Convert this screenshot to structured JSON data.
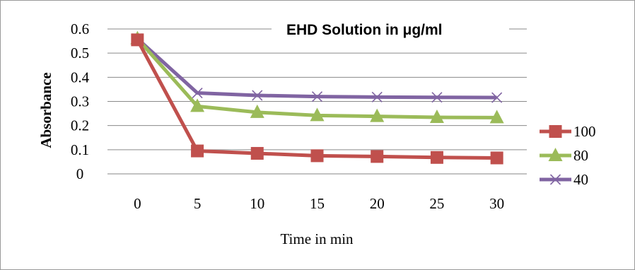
{
  "chart_data": {
    "type": "line",
    "title": "EHD Solution in μg/ml",
    "xlabel": "Time in min",
    "ylabel": "Absorbance",
    "x": [
      0,
      5,
      10,
      15,
      20,
      25,
      30
    ],
    "ylim": [
      0,
      0.6
    ],
    "yticks": [
      "0",
      "0.1",
      "0.2",
      "0.3",
      "0.4",
      "0.5",
      "0.6"
    ],
    "grid": true,
    "legend_position": "right",
    "series": [
      {
        "name": "100",
        "color": "#c0504d",
        "marker": "square",
        "values": [
          0.555,
          0.095,
          0.085,
          0.075,
          0.072,
          0.068,
          0.066
        ]
      },
      {
        "name": "80",
        "color": "#9bbb59",
        "marker": "triangle",
        "values": [
          0.56,
          0.28,
          0.255,
          0.242,
          0.238,
          0.234,
          0.233
        ]
      },
      {
        "name": "40",
        "color": "#8064a2",
        "marker": "x",
        "values": [
          0.56,
          0.335,
          0.325,
          0.32,
          0.318,
          0.317,
          0.316
        ]
      }
    ]
  }
}
